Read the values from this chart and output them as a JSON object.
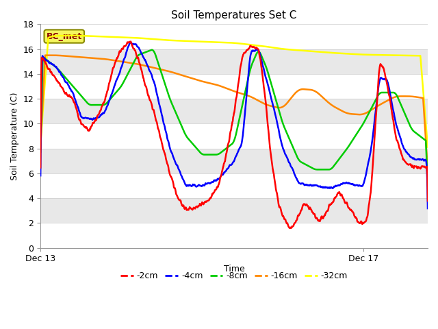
{
  "title": "Soil Temperatures Set C",
  "xlabel": "Time",
  "ylabel": "Soil Temperature (C)",
  "xlim": [
    0,
    96
  ],
  "ylim": [
    0,
    18
  ],
  "yticks": [
    0,
    2,
    4,
    6,
    8,
    10,
    12,
    14,
    16,
    18
  ],
  "xtick_positions": [
    0,
    80
  ],
  "xtick_labels": [
    "Dec 13",
    "Dec 17"
  ],
  "legend_label": "BC_met",
  "band_colors": [
    "#ffffff",
    "#e8e8e8"
  ],
  "series": {
    "neg2cm": {
      "color": "#ff0000",
      "label": "-2cm"
    },
    "neg4cm": {
      "color": "#0000ff",
      "label": "-4cm"
    },
    "neg8cm": {
      "color": "#00cc00",
      "label": "-8cm"
    },
    "neg16cm": {
      "color": "#ff8800",
      "label": "-16cm"
    },
    "neg32cm": {
      "color": "#ffff00",
      "label": "-32cm"
    }
  }
}
